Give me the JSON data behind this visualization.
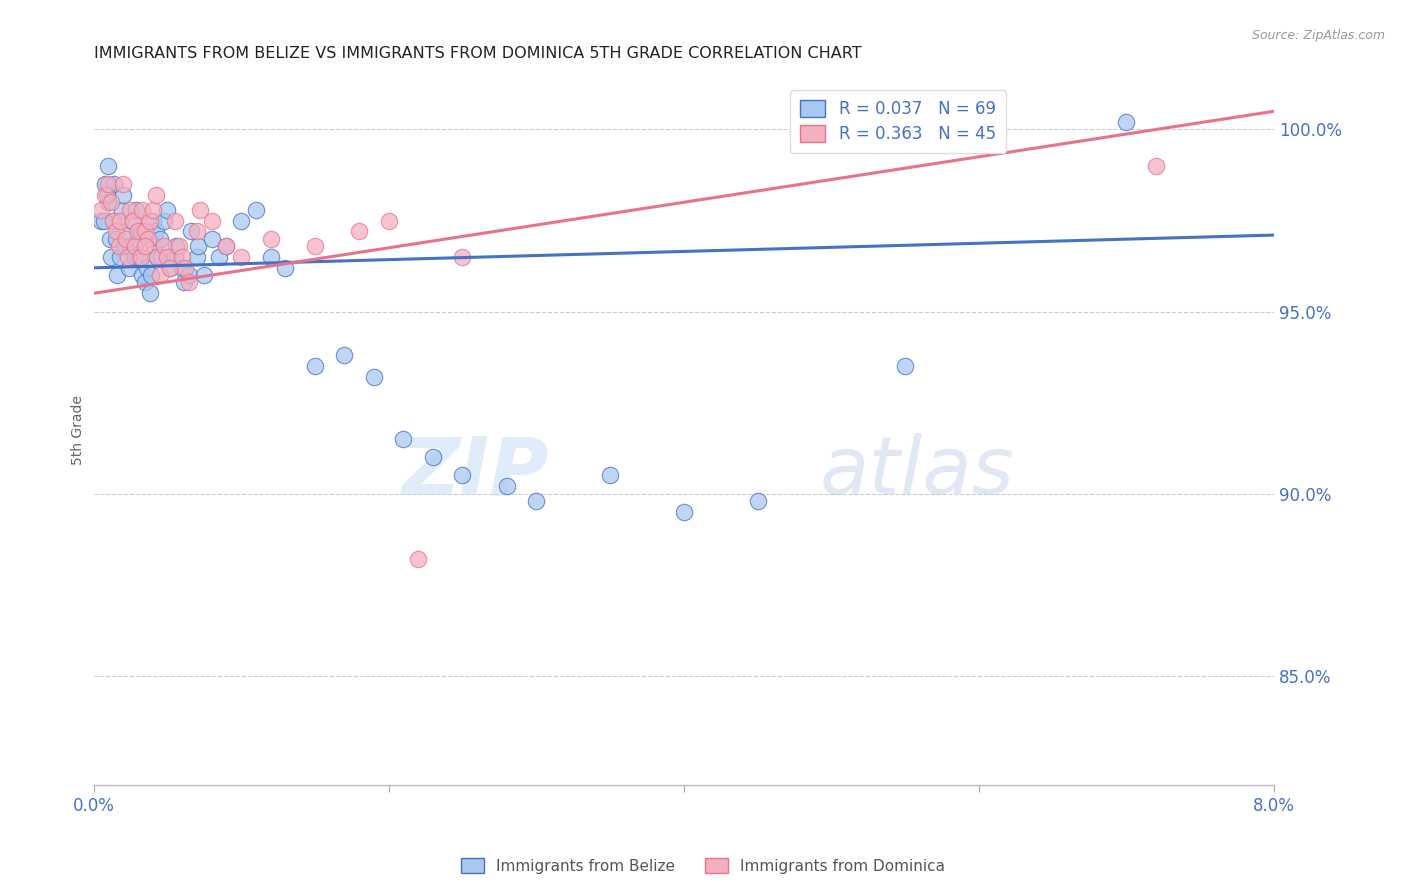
{
  "title": "IMMIGRANTS FROM BELIZE VS IMMIGRANTS FROM DOMINICA 5TH GRADE CORRELATION CHART",
  "source": "Source: ZipAtlas.com",
  "ylabel": "5th Grade",
  "xlim": [
    0.0,
    8.0
  ],
  "ylim": [
    82.0,
    101.5
  ],
  "yticks": [
    85.0,
    90.0,
    95.0,
    100.0
  ],
  "ytick_labels": [
    "85.0%",
    "90.0%",
    "95.0%",
    "100.0%"
  ],
  "xticks": [
    0.0,
    2.0,
    4.0,
    6.0,
    8.0
  ],
  "xtick_labels": [
    "0.0%",
    "",
    "",
    "",
    "8.0%"
  ],
  "legend_belize": "Immigrants from Belize",
  "legend_dominica": "Immigrants from Dominica",
  "R_belize": 0.037,
  "N_belize": 69,
  "R_dominica": 0.363,
  "N_dominica": 45,
  "color_belize": "#a8c8f0",
  "color_dominica": "#f4afc0",
  "color_belize_line": "#4472c4",
  "color_dominica_line": "#e8728a",
  "axis_color": "#4472c4",
  "watermark_zip": "ZIP",
  "watermark_atlas": "atlas",
  "belize_x": [
    0.05,
    0.08,
    0.1,
    0.1,
    0.11,
    0.12,
    0.13,
    0.14,
    0.15,
    0.16,
    0.18,
    0.19,
    0.2,
    0.21,
    0.22,
    0.24,
    0.25,
    0.26,
    0.28,
    0.29,
    0.3,
    0.31,
    0.32,
    0.33,
    0.35,
    0.36,
    0.38,
    0.39,
    0.4,
    0.41,
    0.42,
    0.43,
    0.45,
    0.46,
    0.48,
    0.5,
    0.51,
    0.52,
    0.55,
    0.56,
    0.6,
    0.61,
    0.65,
    0.66,
    0.7,
    0.71,
    0.75,
    0.8,
    0.85,
    0.9,
    1.0,
    1.1,
    1.2,
    1.3,
    1.5,
    1.7,
    1.9,
    2.1,
    2.3,
    2.5,
    2.8,
    3.0,
    3.5,
    4.0,
    4.5,
    5.5,
    0.07,
    0.09,
    7.0
  ],
  "belize_y": [
    97.5,
    98.5,
    99.0,
    98.0,
    97.0,
    96.5,
    97.5,
    98.5,
    97.0,
    96.0,
    96.5,
    97.8,
    98.2,
    96.8,
    97.2,
    96.2,
    96.8,
    97.5,
    96.5,
    97.8,
    97.0,
    96.5,
    97.2,
    96.0,
    95.8,
    96.2,
    95.5,
    96.0,
    97.5,
    96.8,
    97.2,
    96.5,
    97.0,
    96.5,
    97.5,
    97.8,
    96.5,
    96.2,
    96.5,
    96.8,
    96.2,
    95.8,
    96.0,
    97.2,
    96.5,
    96.8,
    96.0,
    97.0,
    96.5,
    96.8,
    97.5,
    97.8,
    96.5,
    96.2,
    93.5,
    93.8,
    93.2,
    91.5,
    91.0,
    90.5,
    90.2,
    89.8,
    90.5,
    89.5,
    89.8,
    93.5,
    97.5,
    98.2,
    100.2
  ],
  "dominica_x": [
    0.05,
    0.08,
    0.1,
    0.12,
    0.13,
    0.15,
    0.17,
    0.18,
    0.2,
    0.22,
    0.23,
    0.25,
    0.27,
    0.28,
    0.3,
    0.32,
    0.33,
    0.35,
    0.37,
    0.38,
    0.4,
    0.42,
    0.43,
    0.45,
    0.48,
    0.5,
    0.52,
    0.55,
    0.58,
    0.6,
    0.62,
    0.65,
    0.7,
    0.72,
    0.8,
    0.9,
    1.0,
    1.2,
    1.5,
    1.8,
    2.0,
    2.2,
    2.5,
    7.2,
    0.35
  ],
  "dominica_y": [
    97.8,
    98.2,
    98.5,
    98.0,
    97.5,
    97.2,
    96.8,
    97.5,
    98.5,
    97.0,
    96.5,
    97.8,
    97.5,
    96.8,
    97.2,
    96.5,
    97.8,
    97.2,
    97.0,
    97.5,
    97.8,
    98.2,
    96.5,
    96.0,
    96.8,
    96.5,
    96.2,
    97.5,
    96.8,
    96.5,
    96.2,
    95.8,
    97.2,
    97.8,
    97.5,
    96.8,
    96.5,
    97.0,
    96.8,
    97.2,
    97.5,
    88.2,
    96.5,
    99.0,
    96.8
  ],
  "belize_line_x0": 0.0,
  "belize_line_y0": 96.2,
  "belize_line_x1": 8.0,
  "belize_line_y1": 97.1,
  "dominica_line_x0": 0.0,
  "dominica_line_y0": 95.5,
  "dominica_line_x1": 8.0,
  "dominica_line_y1": 100.5
}
